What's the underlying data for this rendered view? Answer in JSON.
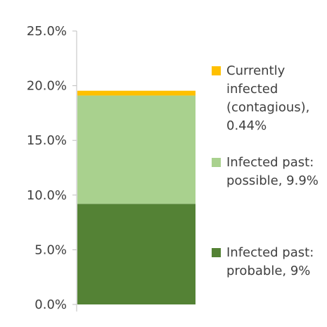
{
  "chart_data": {
    "type": "bar",
    "stacked": true,
    "categories": [
      ""
    ],
    "series": [
      {
        "name": "Infected past: probable, 9%",
        "values": [
          9.2
        ],
        "color": "#548235"
      },
      {
        "name": "Infected past: possible, 9.9%",
        "values": [
          9.9
        ],
        "color": "#a9d18e"
      },
      {
        "name": "Currently infected (contagious), 0.44%",
        "values": [
          0.44
        ],
        "color": "#ffc000"
      }
    ],
    "ylim": [
      0,
      25
    ],
    "yticks": [
      "0.0%",
      "5.0%",
      "10.0%",
      "15.0%",
      "20.0%",
      "25.0%"
    ],
    "title": "",
    "xlabel": "",
    "ylabel": "",
    "grid": false,
    "legend_position": "right"
  },
  "legend": [
    {
      "label": "Currently infected (contagious), 0.44%",
      "color": "#ffc000"
    },
    {
      "label": "Infected past: possible, 9.9%",
      "color": "#a9d18e"
    },
    {
      "label": "Infected past: probable, 9%",
      "color": "#548235"
    }
  ],
  "colors": {
    "axis": "#bfbfbf",
    "text": "#404040"
  }
}
